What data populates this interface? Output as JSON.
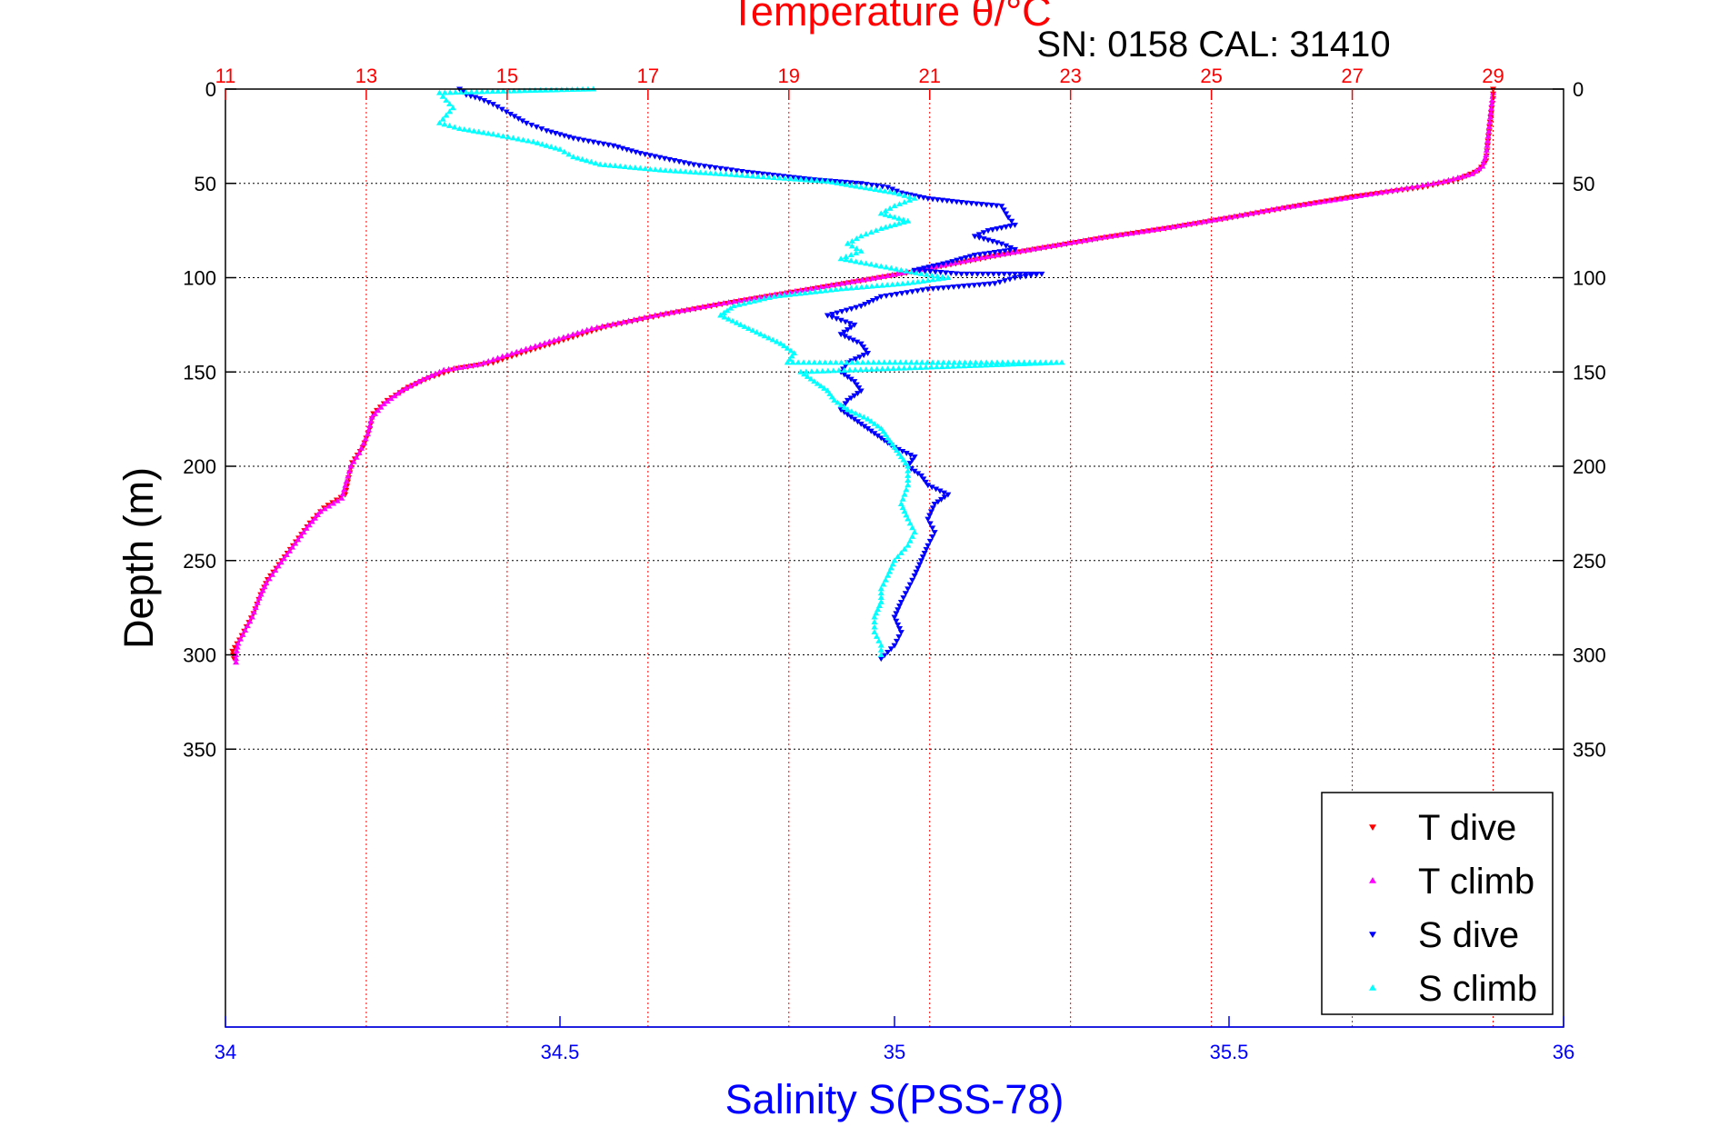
{
  "chart_data": {
    "type": "scatter",
    "top_axis_title": "Temperature θ/°C",
    "annotation": "SN: 0158  CAL: 31410",
    "xlabel": "Salinity S(PSS-78)",
    "ylabel": "Depth (m)",
    "xlim_temperature": [
      11,
      30
    ],
    "xlim_salinity": [
      34,
      36
    ],
    "ylim": [
      0,
      400
    ],
    "y_reversed": true,
    "grid": true,
    "legend_position": "bottom-right",
    "temperature_ticks": [
      "11",
      "13",
      "15",
      "17",
      "19",
      "21",
      "23",
      "25",
      "27",
      "29"
    ],
    "salinity_ticks": [
      "34",
      "34.5",
      "35",
      "35.5",
      "36"
    ],
    "depth_ticks": [
      "0",
      "50",
      "100",
      "150",
      "200",
      "250",
      "300",
      "350"
    ],
    "colors": {
      "t_dive": "#ff0000",
      "t_climb": "#ff00ff",
      "s_dive": "#0000ff",
      "s_climb": "#00ffff",
      "top_axis": "#ff0000",
      "bottom_axis": "#0000ff"
    },
    "series": [
      {
        "name": "T dive",
        "axis": "temperature",
        "marker": "triangle-down",
        "color": "#ff0000",
        "points": [
          [
            29.0,
            0
          ],
          [
            29.0,
            5
          ],
          [
            28.98,
            10
          ],
          [
            28.95,
            20
          ],
          [
            28.92,
            30
          ],
          [
            28.9,
            38
          ],
          [
            28.8,
            43
          ],
          [
            28.5,
            48
          ],
          [
            28.0,
            52
          ],
          [
            27.0,
            57
          ],
          [
            26.2,
            62
          ],
          [
            25.3,
            68
          ],
          [
            24.5,
            73
          ],
          [
            23.6,
            78
          ],
          [
            22.8,
            83
          ],
          [
            22.0,
            88
          ],
          [
            21.3,
            93
          ],
          [
            20.6,
            98
          ],
          [
            19.8,
            103
          ],
          [
            19.0,
            108
          ],
          [
            18.2,
            113
          ],
          [
            17.3,
            119
          ],
          [
            16.4,
            126
          ],
          [
            15.8,
            133
          ],
          [
            15.2,
            140
          ],
          [
            14.8,
            145
          ],
          [
            14.3,
            148
          ],
          [
            13.9,
            153
          ],
          [
            13.6,
            158
          ],
          [
            13.3,
            165
          ],
          [
            13.1,
            172
          ],
          [
            13.05,
            180
          ],
          [
            12.95,
            190
          ],
          [
            12.8,
            198
          ],
          [
            12.75,
            206
          ],
          [
            12.7,
            215
          ],
          [
            12.4,
            222
          ],
          [
            12.2,
            230
          ],
          [
            12.0,
            240
          ],
          [
            11.8,
            250
          ],
          [
            11.6,
            260
          ],
          [
            11.5,
            268
          ],
          [
            11.4,
            278
          ],
          [
            11.3,
            285
          ],
          [
            11.2,
            292
          ],
          [
            11.1,
            298
          ],
          [
            11.12,
            302
          ]
        ]
      },
      {
        "name": "T climb",
        "axis": "temperature",
        "marker": "triangle-up",
        "color": "#ff00ff",
        "points": [
          [
            29.0,
            2
          ],
          [
            28.98,
            8
          ],
          [
            28.96,
            15
          ],
          [
            28.93,
            25
          ],
          [
            28.9,
            35
          ],
          [
            28.85,
            41
          ],
          [
            28.7,
            45
          ],
          [
            28.3,
            49
          ],
          [
            27.7,
            53
          ],
          [
            26.9,
            58
          ],
          [
            26.0,
            63
          ],
          [
            25.1,
            69
          ],
          [
            24.3,
            74
          ],
          [
            23.4,
            79
          ],
          [
            22.6,
            84
          ],
          [
            21.8,
            89
          ],
          [
            21.1,
            94
          ],
          [
            20.4,
            99
          ],
          [
            19.6,
            104
          ],
          [
            18.8,
            109
          ],
          [
            18.0,
            114
          ],
          [
            17.1,
            120
          ],
          [
            16.2,
            127
          ],
          [
            15.6,
            134
          ],
          [
            15.0,
            141
          ],
          [
            14.6,
            146
          ],
          [
            14.1,
            149
          ],
          [
            13.8,
            154
          ],
          [
            13.5,
            160
          ],
          [
            13.25,
            167
          ],
          [
            13.08,
            174
          ],
          [
            13.02,
            183
          ],
          [
            12.9,
            193
          ],
          [
            12.78,
            200
          ],
          [
            12.72,
            208
          ],
          [
            12.65,
            217
          ],
          [
            12.35,
            224
          ],
          [
            12.15,
            233
          ],
          [
            11.95,
            243
          ],
          [
            11.75,
            253
          ],
          [
            11.58,
            262
          ],
          [
            11.48,
            270
          ],
          [
            11.38,
            280
          ],
          [
            11.28,
            287
          ],
          [
            11.18,
            294
          ],
          [
            11.15,
            300
          ],
          [
            11.15,
            304
          ]
        ]
      },
      {
        "name": "S dive",
        "axis": "salinity",
        "marker": "triangle-down",
        "color": "#0000ff",
        "points": [
          [
            34.35,
            0
          ],
          [
            34.36,
            3
          ],
          [
            34.38,
            5
          ],
          [
            34.4,
            8
          ],
          [
            34.42,
            12
          ],
          [
            34.45,
            18
          ],
          [
            34.48,
            22
          ],
          [
            34.52,
            26
          ],
          [
            34.58,
            30
          ],
          [
            34.62,
            34
          ],
          [
            34.7,
            40
          ],
          [
            34.78,
            44
          ],
          [
            34.88,
            48
          ],
          [
            34.95,
            50
          ],
          [
            34.99,
            52
          ],
          [
            35.01,
            55
          ],
          [
            35.05,
            58
          ],
          [
            35.1,
            60
          ],
          [
            35.16,
            62
          ],
          [
            35.17,
            68
          ],
          [
            35.18,
            72
          ],
          [
            35.14,
            75
          ],
          [
            35.12,
            78
          ],
          [
            35.16,
            82
          ],
          [
            35.18,
            85
          ],
          [
            35.12,
            88
          ],
          [
            35.08,
            92
          ],
          [
            35.03,
            96
          ],
          [
            35.1,
            98
          ],
          [
            35.18,
            100
          ],
          [
            35.22,
            98
          ],
          [
            35.15,
            103
          ],
          [
            35.05,
            106
          ],
          [
            34.98,
            110
          ],
          [
            34.95,
            115
          ],
          [
            34.9,
            120
          ],
          [
            34.94,
            125
          ],
          [
            34.92,
            130
          ],
          [
            34.95,
            135
          ],
          [
            34.96,
            140
          ],
          [
            34.93,
            145
          ],
          [
            34.92,
            150
          ],
          [
            34.94,
            155
          ],
          [
            34.95,
            160
          ],
          [
            34.93,
            165
          ],
          [
            34.92,
            170
          ],
          [
            34.94,
            175
          ],
          [
            34.96,
            180
          ],
          [
            34.98,
            185
          ],
          [
            35.0,
            190
          ],
          [
            35.03,
            195
          ],
          [
            35.02,
            200
          ],
          [
            35.04,
            205
          ],
          [
            35.05,
            210
          ],
          [
            35.08,
            215
          ],
          [
            35.06,
            220
          ],
          [
            35.05,
            228
          ],
          [
            35.06,
            235
          ],
          [
            35.05,
            242
          ],
          [
            35.04,
            250
          ],
          [
            35.03,
            258
          ],
          [
            35.02,
            265
          ],
          [
            35.01,
            272
          ],
          [
            35.0,
            280
          ],
          [
            35.01,
            288
          ],
          [
            35.0,
            295
          ],
          [
            34.98,
            302
          ]
        ]
      },
      {
        "name": "S climb",
        "axis": "salinity",
        "marker": "triangle-up",
        "color": "#00ffff",
        "points": [
          [
            34.32,
            2
          ],
          [
            34.33,
            6
          ],
          [
            34.34,
            10
          ],
          [
            34.33,
            14
          ],
          [
            34.32,
            18
          ],
          [
            34.35,
            21
          ],
          [
            34.4,
            24
          ],
          [
            34.46,
            28
          ],
          [
            34.5,
            32
          ],
          [
            34.52,
            36
          ],
          [
            34.56,
            40
          ],
          [
            34.65,
            43
          ],
          [
            34.74,
            45
          ],
          [
            34.82,
            47
          ],
          [
            34.9,
            49
          ],
          [
            34.95,
            52
          ],
          [
            35.0,
            55
          ],
          [
            35.03,
            58
          ],
          [
            35.0,
            62
          ],
          [
            34.98,
            66
          ],
          [
            35.02,
            70
          ],
          [
            34.98,
            74
          ],
          [
            34.95,
            78
          ],
          [
            34.93,
            82
          ],
          [
            34.95,
            86
          ],
          [
            34.92,
            90
          ],
          [
            34.98,
            94
          ],
          [
            35.04,
            98
          ],
          [
            35.08,
            100
          ],
          [
            35.02,
            103
          ],
          [
            34.92,
            106
          ],
          [
            34.82,
            110
          ],
          [
            34.76,
            115
          ],
          [
            34.74,
            120
          ],
          [
            34.77,
            125
          ],
          [
            34.8,
            130
          ],
          [
            34.83,
            135
          ],
          [
            34.85,
            140
          ],
          [
            34.84,
            145
          ],
          [
            34.86,
            150
          ],
          [
            34.88,
            155
          ],
          [
            34.9,
            160
          ],
          [
            34.91,
            165
          ],
          [
            34.93,
            170
          ],
          [
            34.96,
            175
          ],
          [
            34.98,
            180
          ],
          [
            34.99,
            185
          ],
          [
            35.0,
            190
          ],
          [
            35.01,
            195
          ],
          [
            35.02,
            200
          ],
          [
            35.02,
            210
          ],
          [
            35.01,
            220
          ],
          [
            35.02,
            228
          ],
          [
            35.03,
            235
          ],
          [
            35.02,
            242
          ],
          [
            35.0,
            250
          ],
          [
            34.99,
            258
          ],
          [
            34.98,
            265
          ],
          [
            34.98,
            272
          ],
          [
            34.97,
            280
          ],
          [
            34.97,
            288
          ],
          [
            34.98,
            295
          ],
          [
            34.98,
            300
          ],
          [
            35.25,
            145
          ],
          [
            34.55,
            0
          ]
        ]
      }
    ]
  }
}
